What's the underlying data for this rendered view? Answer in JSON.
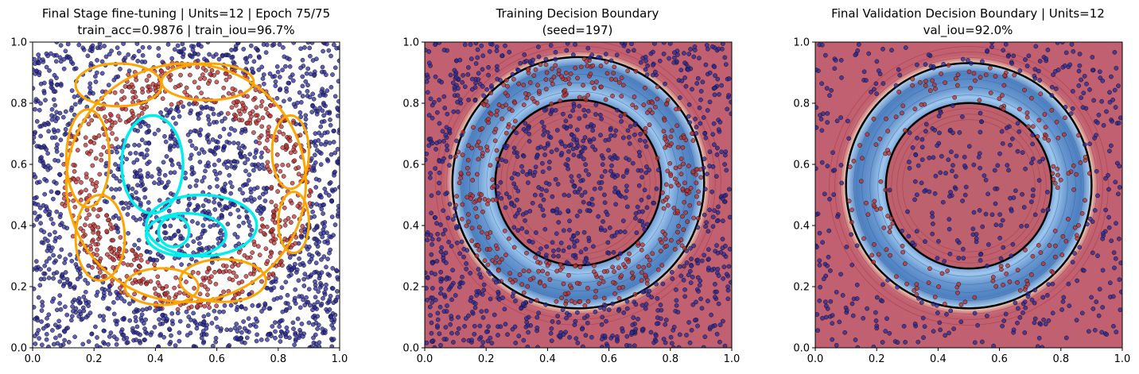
{
  "chart_data": [
    {
      "type": "scatter",
      "panel": "loops",
      "title": "Final Stage fine-tuning | Units=12 | Epoch 75/75",
      "subtitle": "train_acc=0.9876 | train_iou=96.7%",
      "xlim": [
        0,
        1
      ],
      "ylim": [
        0,
        1
      ],
      "xticks": [
        "0.0",
        "0.2",
        "0.4",
        "0.6",
        "0.8",
        "1.0"
      ],
      "yticks": [
        "0.0",
        "0.2",
        "0.4",
        "0.6",
        "0.8",
        "1.0"
      ],
      "grid": false,
      "point_count": 2400,
      "ring_region": {
        "center": [
          0.5,
          0.53
        ],
        "inner_radius": 0.27,
        "outer_radius": 0.41
      },
      "colors": {
        "outside": "#2a2aa0",
        "ring": "#c43030",
        "unit_loops_outer": "#ffa500",
        "unit_loops_inner": "#00eeee",
        "background": "#ffffff"
      },
      "unit_loops": [
        {
          "color": "orange",
          "cx": 0.5,
          "cy": 0.54,
          "rx": 0.39,
          "ry": 0.39
        },
        {
          "color": "orange",
          "cx": 0.28,
          "cy": 0.86,
          "rx": 0.14,
          "ry": 0.07
        },
        {
          "color": "orange",
          "cx": 0.57,
          "cy": 0.87,
          "rx": 0.15,
          "ry": 0.06
        },
        {
          "color": "orange",
          "cx": 0.18,
          "cy": 0.62,
          "rx": 0.07,
          "ry": 0.16
        },
        {
          "color": "orange",
          "cx": 0.84,
          "cy": 0.64,
          "rx": 0.06,
          "ry": 0.12
        },
        {
          "color": "orange",
          "cx": 0.22,
          "cy": 0.36,
          "rx": 0.08,
          "ry": 0.14
        },
        {
          "color": "orange",
          "cx": 0.85,
          "cy": 0.41,
          "rx": 0.05,
          "ry": 0.1
        },
        {
          "color": "orange",
          "cx": 0.62,
          "cy": 0.22,
          "rx": 0.14,
          "ry": 0.07
        },
        {
          "color": "orange",
          "cx": 0.42,
          "cy": 0.2,
          "rx": 0.12,
          "ry": 0.06
        },
        {
          "color": "cyan",
          "cx": 0.39,
          "cy": 0.6,
          "rx": 0.1,
          "ry": 0.16
        },
        {
          "color": "cyan",
          "cx": 0.55,
          "cy": 0.4,
          "rx": 0.18,
          "ry": 0.1
        },
        {
          "color": "cyan",
          "cx": 0.5,
          "cy": 0.37,
          "rx": 0.13,
          "ry": 0.07
        },
        {
          "color": "cyan",
          "cx": 0.46,
          "cy": 0.38,
          "rx": 0.05,
          "ry": 0.05
        }
      ]
    },
    {
      "type": "heatmap",
      "panel": "train",
      "title": "Training Decision Boundary",
      "subtitle": "(seed=197)",
      "xlim": [
        0,
        1
      ],
      "ylim": [
        0,
        1
      ],
      "xticks": [
        "0.0",
        "0.2",
        "0.4",
        "0.6",
        "0.8",
        "1.0"
      ],
      "yticks": [
        "0.0",
        "0.2",
        "0.4",
        "0.6",
        "0.8",
        "1.0"
      ],
      "grid": false,
      "point_count": 1500,
      "ring_region": {
        "center": [
          0.5,
          0.54
        ],
        "inner_radius": 0.27,
        "outer_radius": 0.41
      },
      "colors": {
        "outside_fill": "#c06070",
        "ring_fill": "#6aa0d8",
        "boundary": "#000000",
        "points_outside": "#2a2aa0",
        "points_ring": "#c43030"
      }
    },
    {
      "type": "heatmap",
      "panel": "val",
      "title": "Final Validation Decision Boundary | Units=12",
      "subtitle": "val_iou=92.0%",
      "xlim": [
        0,
        1
      ],
      "ylim": [
        0,
        1
      ],
      "xticks": [
        "0.0",
        "0.2",
        "0.4",
        "0.6",
        "0.8",
        "1.0"
      ],
      "yticks": [
        "0.0",
        "0.2",
        "0.4",
        "0.6",
        "0.8",
        "1.0"
      ],
      "grid": false,
      "point_count": 700,
      "ring_region": {
        "center": [
          0.5,
          0.53
        ],
        "inner_radius": 0.27,
        "outer_radius": 0.4
      },
      "colors": {
        "outside_fill": "#c06070",
        "ring_fill": "#6aa0d8",
        "boundary": "#000000",
        "points_outside": "#2a2aa0",
        "points_ring": "#c43030"
      }
    }
  ]
}
